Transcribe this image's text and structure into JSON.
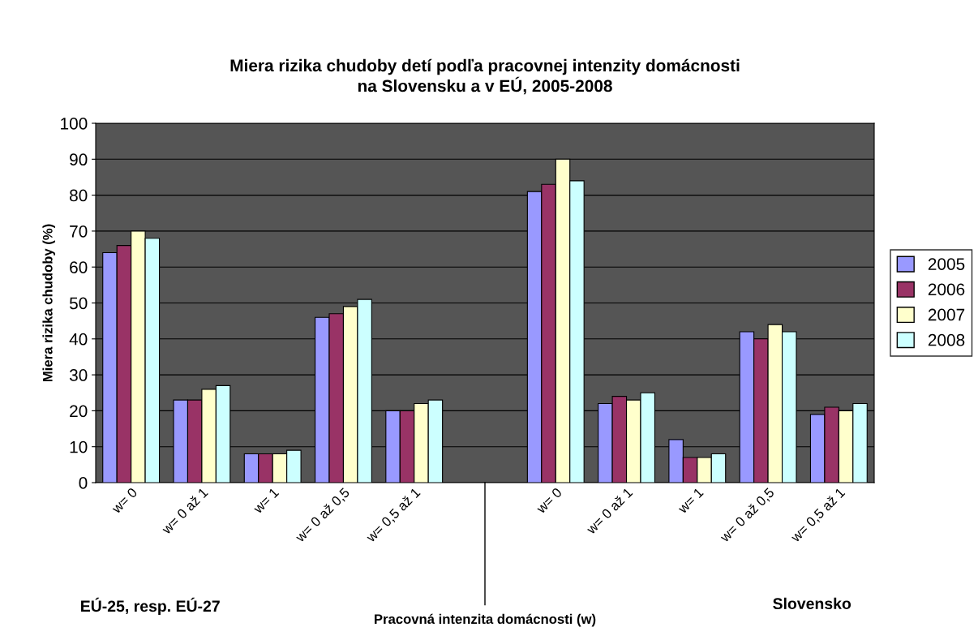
{
  "chart_data": {
    "type": "bar",
    "title": "Miera rizika chudoby detí podľa pracovnej intenzity domácnosti\nna Slovensku a v EÚ, 2005-2008",
    "ylabel": "Miera rizika chudoby (%)",
    "categories": [
      "w= 0",
      "w= 0 až 1",
      "w= 1",
      "w= 0 až 0,5",
      "w= 0,5 až 1",
      null,
      "w= 0",
      "w= 0 až 1",
      "w= 1",
      "w= 0 až 0,5",
      "w= 0,5 až 1"
    ],
    "series": [
      {
        "name": "2005",
        "color": "#9999ff",
        "values": [
          64,
          23,
          8,
          46,
          20,
          null,
          81,
          22,
          12,
          42,
          19
        ]
      },
      {
        "name": "2006",
        "color": "#993366",
        "values": [
          66,
          23,
          8,
          47,
          20,
          null,
          83,
          24,
          7,
          40,
          21
        ]
      },
      {
        "name": "2007",
        "color": "#ffffcc",
        "values": [
          70,
          26,
          8,
          49,
          22,
          null,
          90,
          23,
          7,
          44,
          20
        ]
      },
      {
        "name": "2008",
        "color": "#ccffff",
        "values": [
          68,
          27,
          9,
          51,
          23,
          null,
          84,
          25,
          8,
          42,
          22
        ]
      }
    ],
    "ylim": [
      0,
      100
    ],
    "yticks": [
      0,
      10,
      20,
      30,
      40,
      50,
      60,
      70,
      80,
      90,
      100
    ],
    "grid": "y",
    "legend": "right",
    "annotations": [
      "EÚ-25, resp. EÚ-27",
      "Pracovná intenzita domácnosti (w)",
      "Slovensko"
    ]
  }
}
